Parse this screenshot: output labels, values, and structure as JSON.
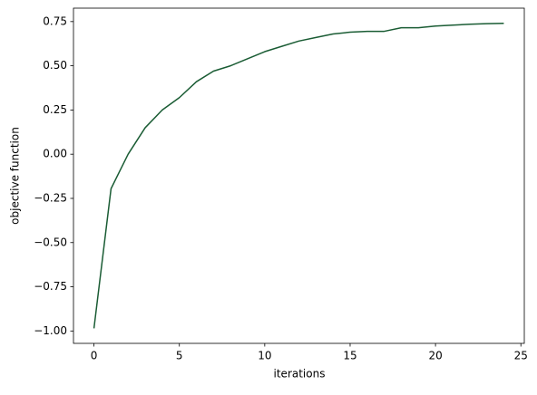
{
  "chart_data": {
    "type": "line",
    "x_label": "iterations",
    "y_label": "objective function",
    "x": [
      0,
      1,
      2,
      3,
      4,
      5,
      6,
      7,
      8,
      9,
      10,
      11,
      12,
      13,
      14,
      15,
      16,
      17,
      18,
      19,
      20,
      21,
      22,
      23,
      24
    ],
    "values": [
      -0.985,
      -0.195,
      0.0,
      0.15,
      0.25,
      0.32,
      0.41,
      0.47,
      0.5,
      0.54,
      0.58,
      0.61,
      0.64,
      0.66,
      0.68,
      0.69,
      0.695,
      0.695,
      0.715,
      0.715,
      0.725,
      0.73,
      0.735,
      0.738,
      0.74
    ],
    "color": "#1a5c34",
    "xlim": [
      -1.2,
      25.2
    ],
    "xticks": [
      0,
      5,
      10,
      15,
      20,
      25
    ],
    "ylim": [
      -1.07,
      0.826
    ],
    "yticks": [
      {
        "value": -1.0,
        "label": "−1.00"
      },
      {
        "value": -0.75,
        "label": "−0.75"
      },
      {
        "value": -0.5,
        "label": "−0.50"
      },
      {
        "value": -0.25,
        "label": "−0.25"
      },
      {
        "value": 0,
        "label": "0.00"
      },
      {
        "value": 0.25,
        "label": "0.25"
      },
      {
        "value": 0.5,
        "label": "0.50"
      },
      {
        "value": 0.75,
        "label": "0.75"
      }
    ],
    "grid": false
  }
}
